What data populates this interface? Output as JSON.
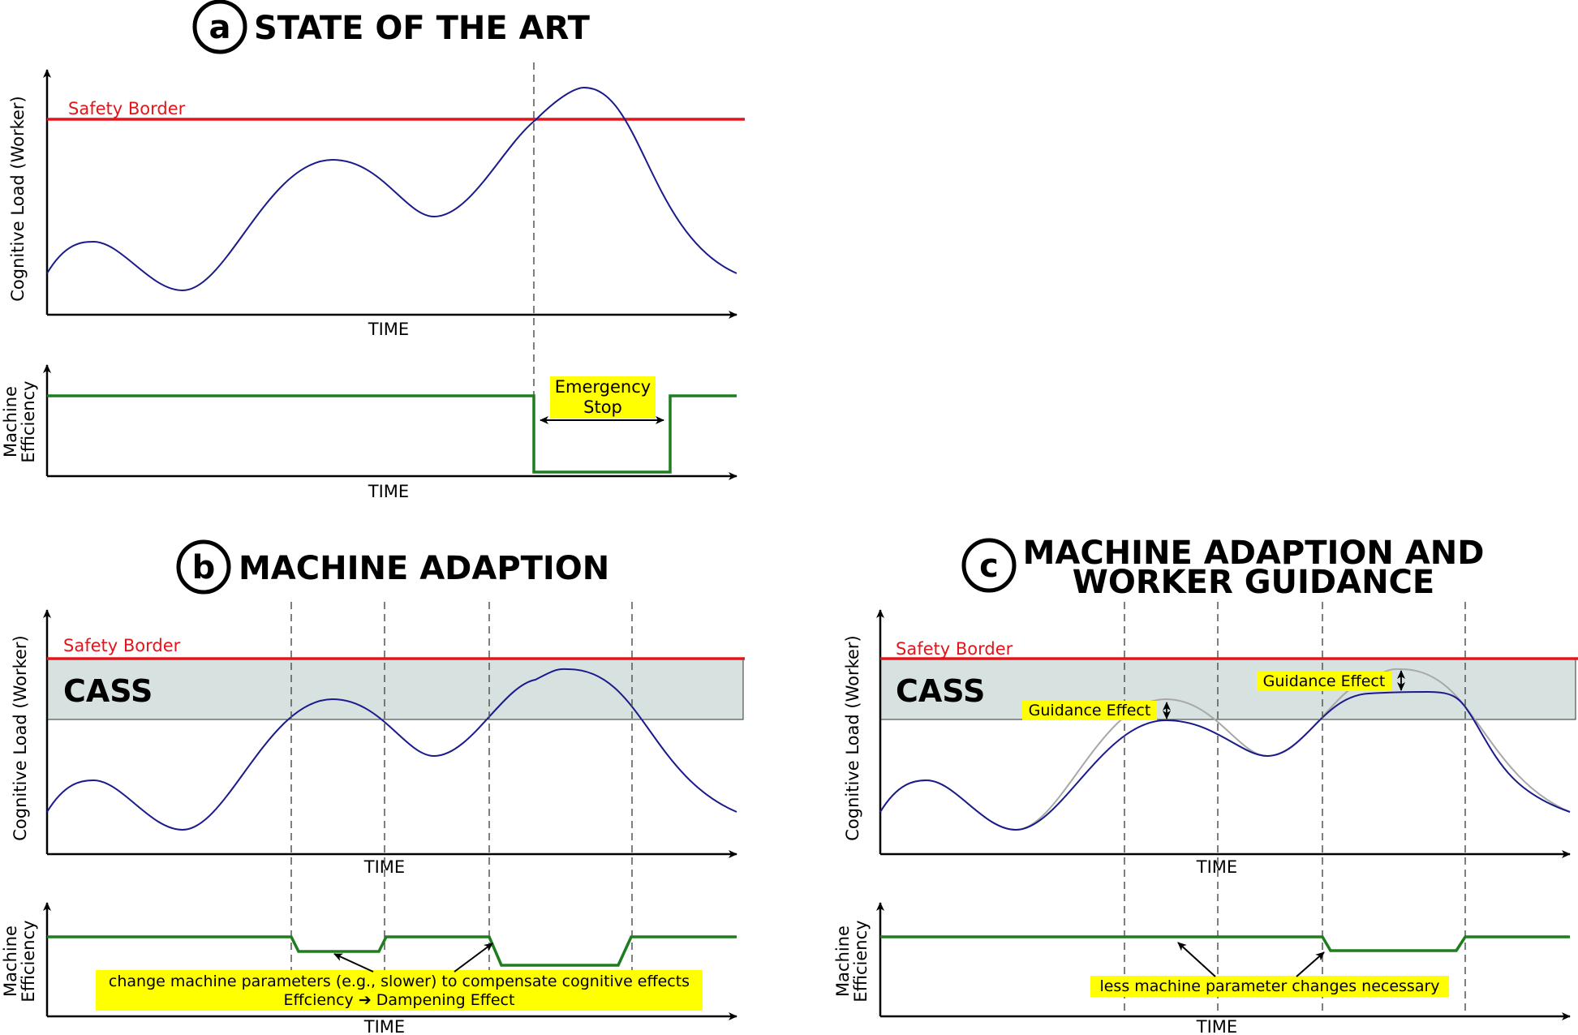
{
  "colors": {
    "safety": "#e3151a",
    "load_curve": "#1a1a8c",
    "efficiency": "#1e7d1e",
    "cass_fill": "#d6e1e0",
    "highlight": "#ffff00",
    "ghost_curve": "#a8a8a8",
    "dashed": "#555555"
  },
  "panel_a": {
    "badge": "a",
    "title": "STATE OF THE ART",
    "y_label": "Cognitive Load (Worker)",
    "time_label": "TIME",
    "safety_label": "Safety Border",
    "eff_label_1": "Machine",
    "eff_label_2": "Efficiency",
    "time_label_2": "TIME",
    "stop_line_1": "Emergency",
    "stop_line_2": "Stop"
  },
  "panel_b": {
    "badge": "b",
    "title": "MACHINE ADAPTION",
    "y_label": "Cognitive Load (Worker)",
    "time_label": "TIME",
    "safety_label": "Safety Border",
    "cass_label": "CASS",
    "eff_label_1": "Machine",
    "eff_label_2": "Efficiency",
    "time_label_2": "TIME",
    "note_line_1": "change machine parameters (e.g., slower) to compensate cognitive effects",
    "note_line_2": "Effciency ➔ Dampening Effect"
  },
  "panel_c": {
    "badge": "c",
    "title_line_1": "MACHINE ADAPTION AND",
    "title_line_2": "WORKER GUIDANCE",
    "y_label": "Cognitive Load (Worker)",
    "time_label": "TIME",
    "safety_label": "Safety Border",
    "cass_label": "CASS",
    "guidance_1": "Guidance Effect",
    "guidance_2": "Guidance Effect",
    "eff_label_1": "Machine",
    "eff_label_2": "Efficiency",
    "time_label_2": "TIME",
    "note": "less machine parameter changes necessary"
  }
}
